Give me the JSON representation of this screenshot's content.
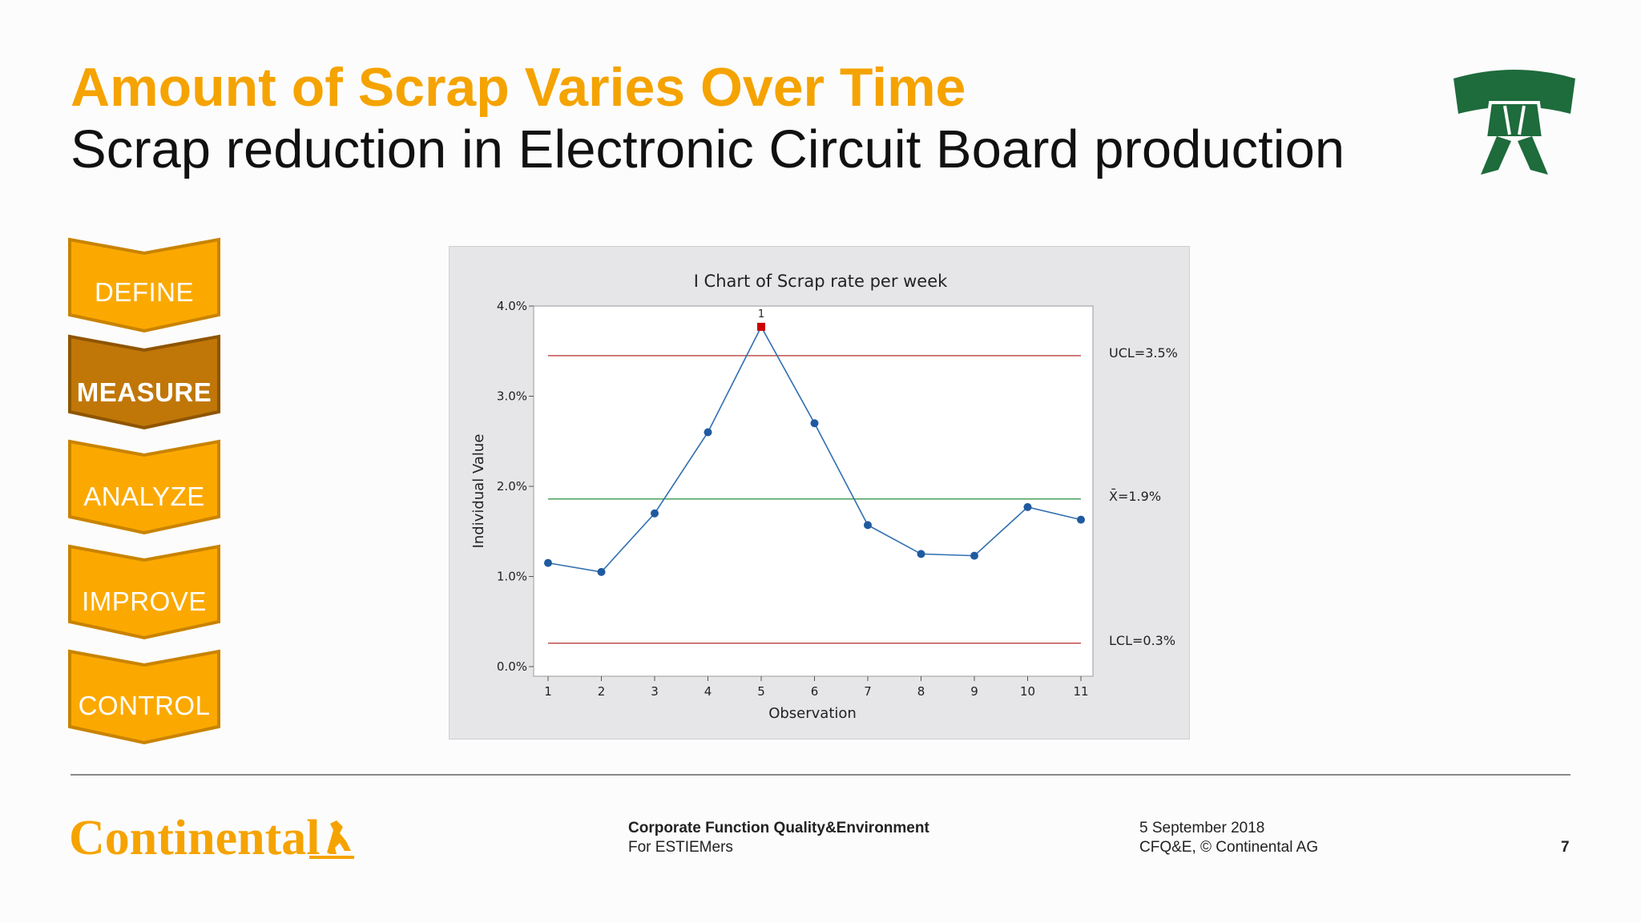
{
  "slide": {
    "title": "Amount of Scrap Varies Over Time",
    "subtitle": "Scrap reduction in Electronic Circuit Board production",
    "belt_icon": "green-belt-icon",
    "colors": {
      "accent": "#f5a300",
      "active_step": "#c07708",
      "belt": "#1e6b3c"
    }
  },
  "dmaic": {
    "steps": [
      {
        "label": "DEFINE",
        "active": false
      },
      {
        "label": "MEASURE",
        "active": true
      },
      {
        "label": "ANALYZE",
        "active": false
      },
      {
        "label": "IMPROVE",
        "active": false
      },
      {
        "label": "CONTROL",
        "active": false
      }
    ]
  },
  "chart_data": {
    "type": "line",
    "title": "I Chart of Scrap rate per week",
    "xlabel": "Observation",
    "ylabel": "Individual Value",
    "x": [
      1,
      2,
      3,
      4,
      5,
      6,
      7,
      8,
      9,
      10,
      11
    ],
    "x_ticks": [
      "1",
      "2",
      "3",
      "4",
      "5",
      "6",
      "7",
      "8",
      "9",
      "10",
      "11"
    ],
    "values": [
      1.15,
      1.05,
      1.7,
      2.6,
      3.77,
      2.7,
      1.57,
      1.25,
      1.23,
      1.77,
      1.63
    ],
    "ylim": [
      0,
      4
    ],
    "y_ticks": [
      "0.0%",
      "1.0%",
      "2.0%",
      "3.0%",
      "4.0%"
    ],
    "y_tick_values": [
      0,
      1,
      2,
      3,
      4
    ],
    "reference_lines": [
      {
        "label": "UCL=3.5%",
        "value": 3.45,
        "color": "#c0504d"
      },
      {
        "label": "X̄=1.9%",
        "value": 1.86,
        "color": "#4aa05a"
      },
      {
        "label": "LCL=0.3%",
        "value": 0.26,
        "color": "#c0504d"
      }
    ],
    "out_of_control": [
      {
        "index": 4,
        "label": "1",
        "color": "#cc0000"
      }
    ],
    "series_color": "#2f6fb0",
    "point_color": "#1f5aa0",
    "grid": false
  },
  "footer": {
    "logo_text": "Continental",
    "org_line1": "Corporate Function Quality&Environment",
    "org_line2": "For ESTIEMers",
    "date": "5 September 2018",
    "copyright": "CFQ&E, © Continental AG",
    "page_number": "7"
  }
}
